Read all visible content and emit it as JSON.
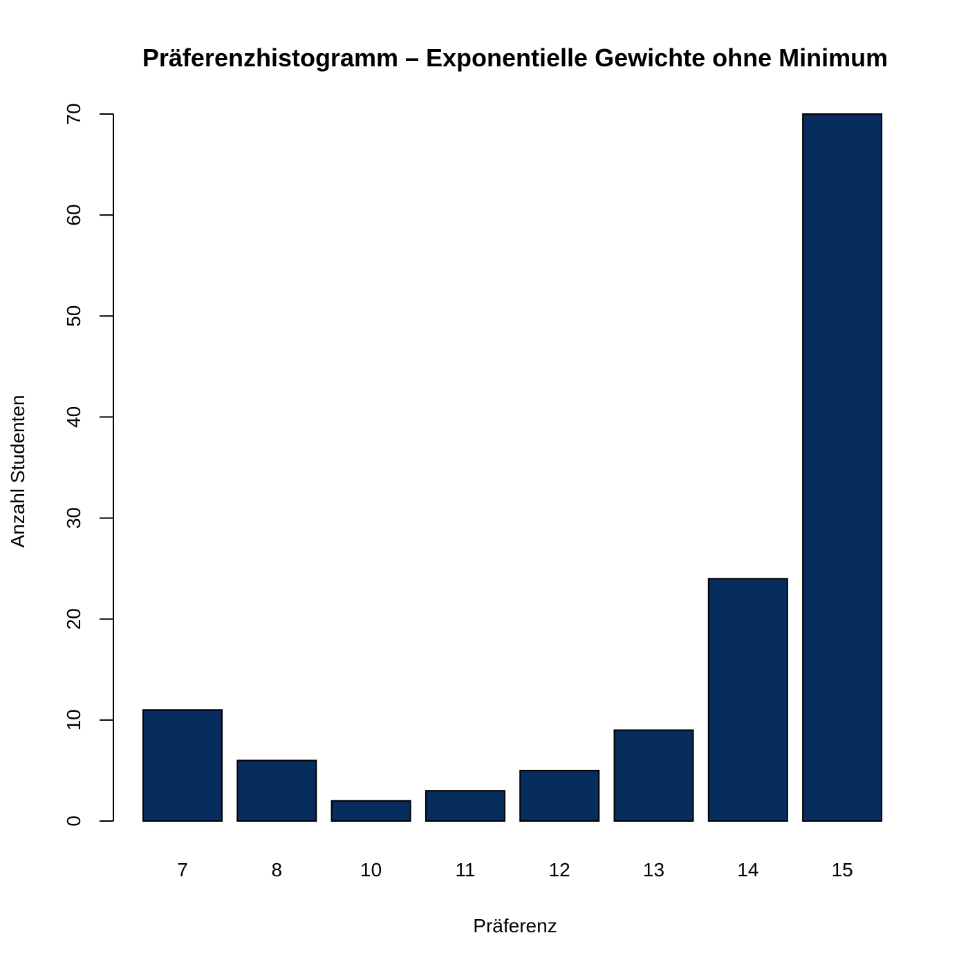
{
  "chart_data": {
    "type": "bar",
    "title": "Präferenzhistogramm – Exponentielle Gewichte ohne Minimum",
    "xlabel": "Präferenz",
    "ylabel": "Anzahl Studenten",
    "categories": [
      "7",
      "8",
      "10",
      "11",
      "12",
      "13",
      "14",
      "15"
    ],
    "values": [
      11,
      6,
      2,
      3,
      5,
      9,
      24,
      70
    ],
    "ylim": [
      0,
      70
    ],
    "yticks": [
      "0",
      "10",
      "20",
      "30",
      "40",
      "50",
      "60",
      "70"
    ],
    "grid": false,
    "legend": "none",
    "colors": {
      "bar_fill": "#072c5e",
      "bar_stroke": "#000000",
      "axis": "#000000"
    }
  }
}
